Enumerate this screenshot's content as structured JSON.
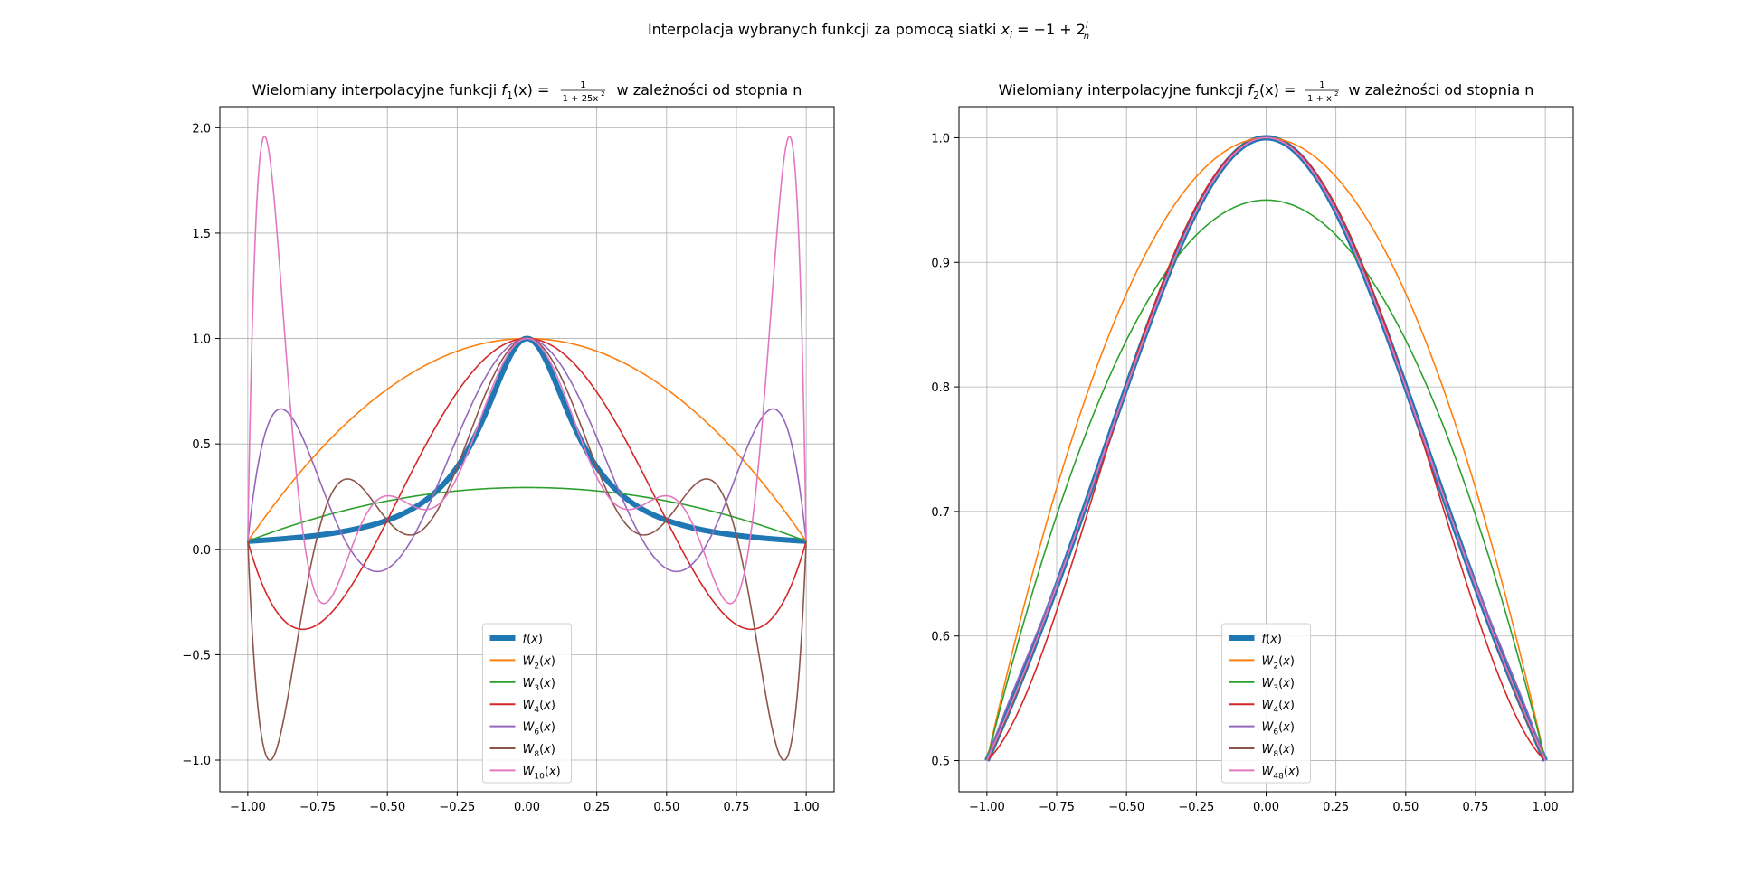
{
  "suptitle": {
    "prefix": "Interpolacja wybranych funkcji za pomocą siatki ",
    "math": "x_i = -1 + 2 i / n"
  },
  "chart_data": [
    {
      "type": "line",
      "title": {
        "prefix": "Wielomiany interpolacyjne funkcji ",
        "f": "f",
        "sub": "1",
        "fx": "(x) = ",
        "num": "1",
        "den": "1 + 25x",
        "suffix": " w zależności od stopnia n"
      },
      "function": "1/(1+25x^2)",
      "xlim": [
        -1.1,
        1.1
      ],
      "ylim": [
        -1.15,
        2.1
      ],
      "xticks": [
        -1.0,
        -0.75,
        -0.5,
        -0.25,
        0.0,
        0.25,
        0.5,
        0.75,
        1.0
      ],
      "xtick_labels": [
        "−1.00",
        "−0.75",
        "−0.50",
        "−0.25",
        "0.00",
        "0.25",
        "0.50",
        "0.75",
        "1.00"
      ],
      "yticks": [
        -1.0,
        -0.5,
        0.0,
        0.5,
        1.0,
        1.5,
        2.0
      ],
      "ytick_labels": [
        "−1.0",
        "−0.5",
        "0.0",
        "0.5",
        "1.0",
        "1.5",
        "2.0"
      ],
      "grid": true,
      "legend_placement": "lower center",
      "series": [
        {
          "name": "f(x)",
          "base": "f",
          "sub": "",
          "degree": null,
          "color": "#1f77b4"
        },
        {
          "name": "W2(x)",
          "base": "W",
          "sub": "2",
          "degree": 2,
          "color": "#ff7f0e"
        },
        {
          "name": "W3(x)",
          "base": "W",
          "sub": "3",
          "degree": 3,
          "color": "#2ca02c"
        },
        {
          "name": "W4(x)",
          "base": "W",
          "sub": "4",
          "degree": 4,
          "color": "#d62728"
        },
        {
          "name": "W6(x)",
          "base": "W",
          "sub": "6",
          "degree": 6,
          "color": "#9467bd"
        },
        {
          "name": "W8(x)",
          "base": "W",
          "sub": "8",
          "degree": 8,
          "color": "#8c564b"
        },
        {
          "name": "W10(x)",
          "base": "W",
          "sub": "10",
          "degree": 10,
          "color": "#e377c2"
        }
      ]
    },
    {
      "type": "line",
      "title": {
        "prefix": "Wielomiany interpolacyjne funkcji ",
        "f": "f",
        "sub": "2",
        "fx": "(x) = ",
        "num": "1",
        "den": "1 + x",
        "suffix": " w zależności od stopnia n"
      },
      "function": "1/(1+x^2)",
      "xlim": [
        -1.1,
        1.1
      ],
      "ylim": [
        0.475,
        1.025
      ],
      "xticks": [
        -1.0,
        -0.75,
        -0.5,
        -0.25,
        0.0,
        0.25,
        0.5,
        0.75,
        1.0
      ],
      "xtick_labels": [
        "−1.00",
        "−0.75",
        "−0.50",
        "−0.25",
        "0.00",
        "0.25",
        "0.50",
        "0.75",
        "1.00"
      ],
      "yticks": [
        0.5,
        0.6,
        0.7,
        0.8,
        0.9,
        1.0
      ],
      "ytick_labels": [
        "0.5",
        "0.6",
        "0.7",
        "0.8",
        "0.9",
        "1.0"
      ],
      "grid": true,
      "legend_placement": "lower center",
      "series": [
        {
          "name": "f(x)",
          "base": "f",
          "sub": "",
          "degree": null,
          "color": "#1f77b4"
        },
        {
          "name": "W2(x)",
          "base": "W",
          "sub": "2",
          "degree": 2,
          "color": "#ff7f0e"
        },
        {
          "name": "W3(x)",
          "base": "W",
          "sub": "3",
          "degree": 3,
          "color": "#2ca02c"
        },
        {
          "name": "W4(x)",
          "base": "W",
          "sub": "4",
          "degree": 4,
          "color": "#d62728"
        },
        {
          "name": "W6(x)",
          "base": "W",
          "sub": "6",
          "degree": 6,
          "color": "#9467bd"
        },
        {
          "name": "W8(x)",
          "base": "W",
          "sub": "8",
          "degree": 8,
          "color": "#8c564b"
        },
        {
          "name": "W48(x)",
          "base": "W",
          "sub": "48",
          "degree": 48,
          "color": "#e377c2"
        }
      ]
    }
  ]
}
